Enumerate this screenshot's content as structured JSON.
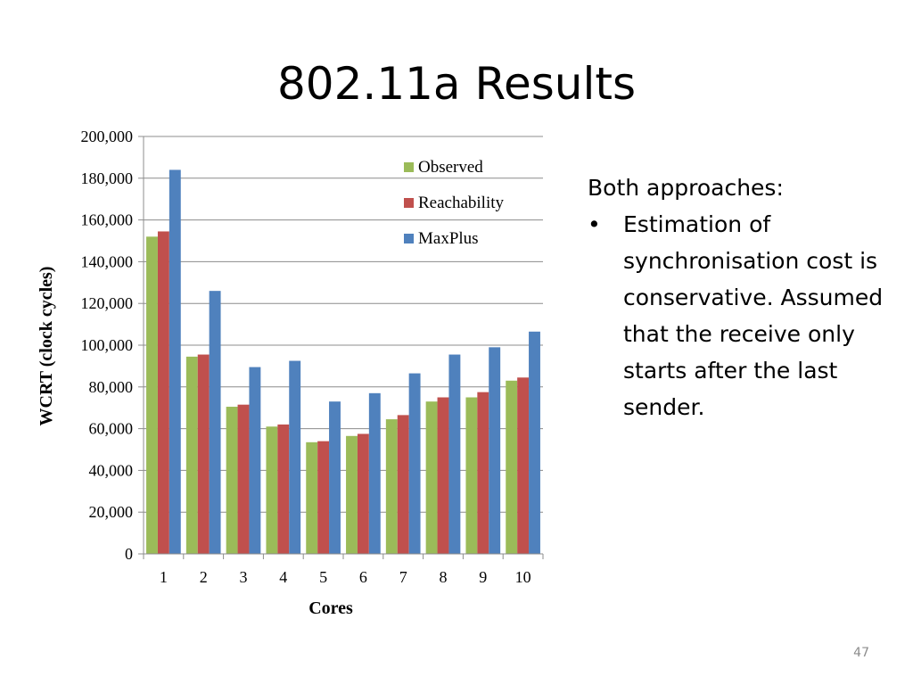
{
  "slide": {
    "title": "802.11a Results",
    "page_number": "47"
  },
  "side_text": {
    "heading": "Both approaches:",
    "bullet_symbol": "•",
    "bullet": "Estimation of synchronisation cost is conservative. Assumed that the receive only starts after the last sender."
  },
  "chart_data": {
    "type": "bar",
    "title": "",
    "xlabel": "Cores",
    "ylabel": "WCRT (clock cycles)",
    "categories": [
      "1",
      "2",
      "3",
      "4",
      "5",
      "6",
      "7",
      "8",
      "9",
      "10"
    ],
    "ylim": [
      0,
      200000
    ],
    "y_ticks": [
      0,
      20000,
      40000,
      60000,
      80000,
      100000,
      120000,
      140000,
      160000,
      180000,
      200000
    ],
    "y_tick_labels": [
      "0",
      "20,000",
      "40,000",
      "60,000",
      "80,000",
      "100,000",
      "120,000",
      "140,000",
      "160,000",
      "180,000",
      "200,000"
    ],
    "grid": true,
    "legend_position": "top-right",
    "series": [
      {
        "name": "Observed",
        "color": "#9bbb59",
        "values": [
          152000,
          94500,
          70500,
          61000,
          53500,
          56500,
          64500,
          73000,
          75000,
          83000
        ]
      },
      {
        "name": "Reachability",
        "color": "#c0504d",
        "values": [
          154500,
          95500,
          71500,
          62000,
          54000,
          57500,
          66500,
          75000,
          77500,
          84500
        ]
      },
      {
        "name": "MaxPlus",
        "color": "#4f81bd",
        "values": [
          184000,
          126000,
          89500,
          92500,
          73000,
          77000,
          86500,
          95500,
          99000,
          106500
        ]
      }
    ]
  }
}
